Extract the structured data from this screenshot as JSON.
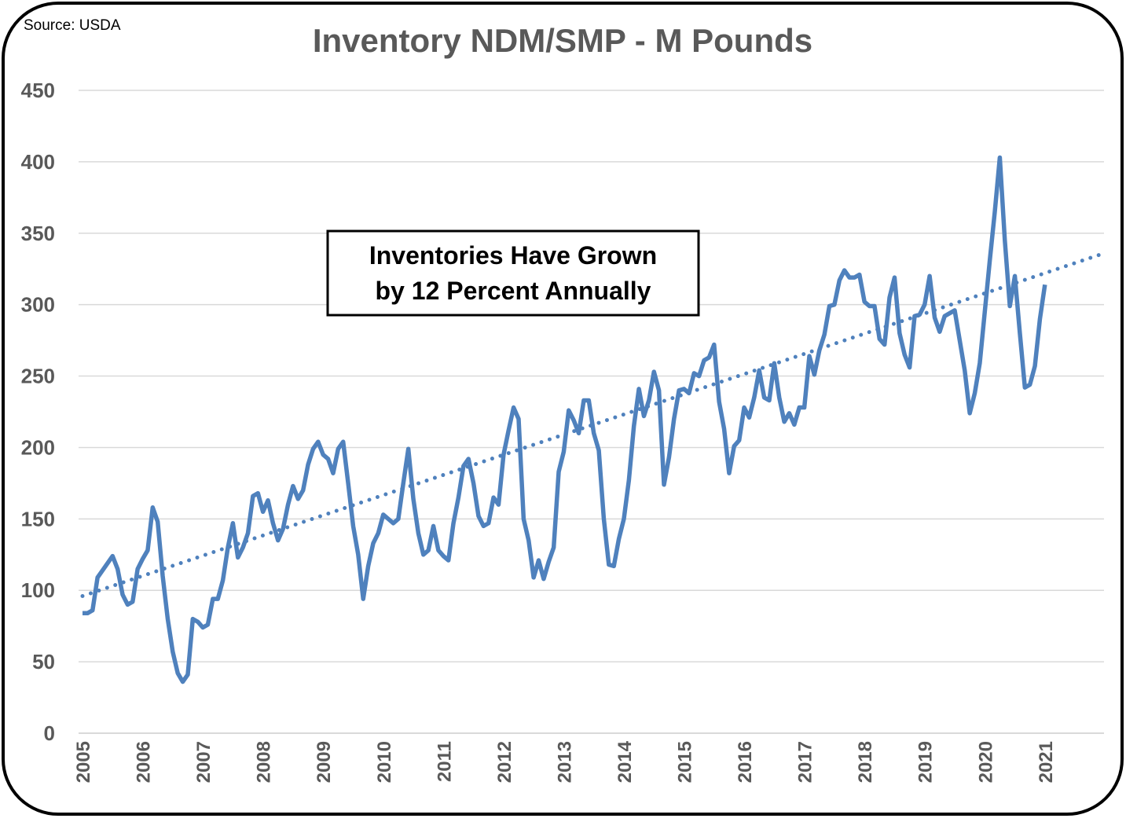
{
  "chart_data": {
    "type": "line",
    "title": "Inventory NDM/SMP - M Pounds",
    "source": "Source: USDA",
    "annotation": [
      "Inventories Have Grown",
      "by 12 Percent Annually"
    ],
    "categories": [
      "2005",
      null,
      null,
      null,
      null,
      null,
      null,
      null,
      null,
      null,
      null,
      null,
      "2006",
      null,
      null,
      null,
      null,
      null,
      null,
      null,
      null,
      null,
      null,
      null,
      "2007",
      null,
      null,
      null,
      null,
      null,
      null,
      null,
      null,
      null,
      null,
      null,
      "2008",
      null,
      null,
      null,
      null,
      null,
      null,
      null,
      null,
      null,
      null,
      null,
      "2009",
      null,
      null,
      null,
      null,
      null,
      null,
      null,
      null,
      null,
      null,
      null,
      "2010",
      null,
      null,
      null,
      null,
      null,
      null,
      null,
      null,
      null,
      null,
      null,
      "2011",
      null,
      null,
      null,
      null,
      null,
      null,
      null,
      null,
      null,
      null,
      null,
      "2012",
      null,
      null,
      null,
      null,
      null,
      null,
      null,
      null,
      null,
      null,
      null,
      "2013",
      null,
      null,
      null,
      null,
      null,
      null,
      null,
      null,
      null,
      null,
      null,
      "2014",
      null,
      null,
      null,
      null,
      null,
      null,
      null,
      null,
      null,
      null,
      null,
      "2015",
      null,
      null,
      null,
      null,
      null,
      null,
      null,
      null,
      null,
      null,
      null,
      "2016",
      null,
      null,
      null,
      null,
      null,
      null,
      null,
      null,
      null,
      null,
      null,
      "2017",
      null,
      null,
      null,
      null,
      null,
      null,
      null,
      null,
      null,
      null,
      null,
      "2018",
      null,
      null,
      null,
      null,
      null,
      null,
      null,
      null,
      null,
      null,
      null,
      "2019",
      null,
      null,
      null,
      null,
      null,
      null,
      null,
      null,
      null,
      null,
      null,
      "2020",
      null,
      null,
      null,
      null,
      null,
      null,
      null,
      null,
      null,
      null,
      null,
      "2021",
      null,
      null,
      null,
      null,
      null,
      null,
      null,
      null,
      null,
      null,
      null
    ],
    "series": [
      {
        "color": "#4f81bd",
        "values": [
          84,
          84,
          86,
          109,
          114,
          119,
          124,
          115,
          97,
          90,
          92,
          115,
          122,
          128,
          158,
          148,
          110,
          80,
          57,
          42,
          36,
          41,
          80,
          78,
          74,
          76,
          94,
          94,
          107,
          130,
          147,
          123,
          130,
          140,
          166,
          168,
          155,
          163,
          147,
          135,
          143,
          160,
          173,
          164,
          170,
          188,
          199,
          204,
          195,
          192,
          182,
          199,
          204,
          175,
          145,
          125,
          94,
          117,
          133,
          140,
          153,
          150,
          147,
          150,
          175,
          199,
          164,
          140,
          125,
          128,
          145,
          128,
          124,
          121,
          147,
          165,
          187,
          192,
          175,
          152,
          145,
          147,
          165,
          160,
          195,
          212,
          228,
          220,
          150,
          135,
          109,
          121,
          108,
          120,
          130,
          183,
          197,
          226,
          219,
          210,
          233,
          233,
          210,
          198,
          150,
          118,
          117,
          136,
          150,
          177,
          215,
          241,
          222,
          233,
          253,
          240,
          174,
          193,
          220,
          240,
          241,
          238,
          252,
          250,
          261,
          263,
          272,
          232,
          213,
          182,
          201,
          205,
          228,
          221,
          235,
          254,
          235,
          233,
          259,
          235,
          218,
          224,
          216,
          228,
          228,
          264,
          251,
          268,
          279,
          299,
          300,
          317,
          324,
          319,
          319,
          321,
          302,
          299,
          299,
          276,
          272,
          305,
          319,
          280,
          265,
          256,
          292,
          293,
          300,
          320,
          291,
          281,
          292,
          294,
          296,
          275,
          254,
          224,
          238,
          259,
          295,
          331,
          365,
          403,
          345,
          299,
          320,
          280,
          242,
          244,
          257,
          290,
          314,
          null,
          null,
          null,
          null,
          null,
          null,
          null,
          null,
          null,
          null,
          null
        ]
      }
    ],
    "trend": {
      "color": "#4f81bd",
      "dotted": true,
      "values": [
        96,
        335
      ]
    },
    "ylim": [
      0,
      450
    ],
    "yticks": [
      0,
      50,
      100,
      150,
      200,
      250,
      300,
      350,
      400,
      450
    ],
    "grid": true
  }
}
